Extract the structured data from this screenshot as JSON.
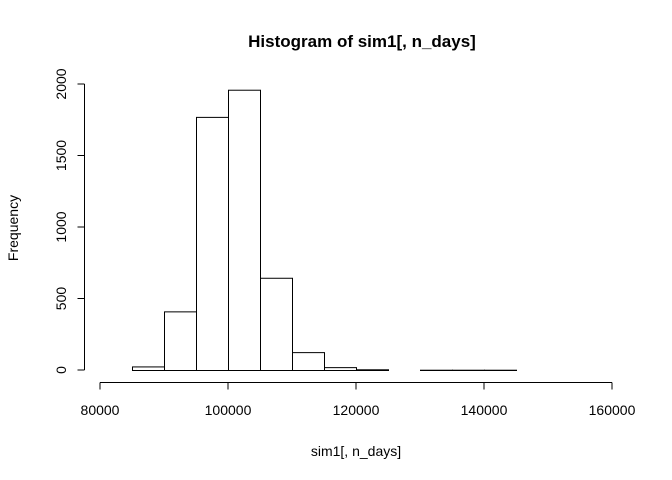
{
  "chart_data": {
    "type": "bar",
    "title": "Histogram of sim1[, n_days]",
    "xlabel": "sim1[, n_days]",
    "ylabel": "Frequency",
    "xlim": [
      80000,
      160000
    ],
    "ylim": [
      0,
      2000
    ],
    "x_ticks": [
      "80000",
      "100000",
      "120000",
      "140000",
      "160000"
    ],
    "y_ticks": [
      "0",
      "500",
      "1000",
      "1500",
      "2000"
    ],
    "x_tick_values": [
      80000,
      100000,
      120000,
      140000,
      160000
    ],
    "y_tick_values": [
      0,
      500,
      1000,
      1500,
      2000
    ],
    "grid": false,
    "bin_edges": [
      80000,
      85000,
      90000,
      95000,
      100000,
      105000,
      110000,
      115000,
      120000,
      125000,
      130000,
      135000,
      140000,
      145000,
      150000,
      155000,
      160000
    ],
    "values": [
      0,
      25,
      410,
      1770,
      1960,
      645,
      125,
      20,
      5,
      0,
      2,
      2,
      2,
      0,
      0,
      0
    ],
    "fill_color": "#ffffff",
    "stroke_color": "#000000"
  }
}
